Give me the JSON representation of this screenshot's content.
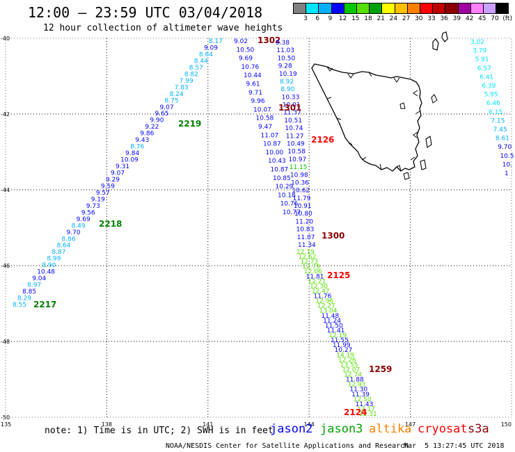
{
  "header": {
    "title": "12:00 – 23:59 UTC 03/04/2018",
    "subtitle": "12 hour collection of altimeter wave heights"
  },
  "colorbar": {
    "colors": [
      "#808080",
      "#00e5ff",
      "#00b0ff",
      "#0000ff",
      "#00c800",
      "#55e000",
      "#00a000",
      "#ffff00",
      "#ffc000",
      "#ff8000",
      "#ff0000",
      "#c00000",
      "#8b0000",
      "#a000a0",
      "#ff80ff",
      "#c8a0ff",
      "#000000"
    ],
    "labels": [
      "3",
      "6",
      "9",
      "12",
      "15",
      "18",
      "21",
      "24",
      "27",
      "30",
      "33",
      "36",
      "39",
      "42",
      "45",
      "70",
      "(ft)"
    ]
  },
  "map": {
    "lat_labels": [
      "-40",
      "-42",
      "-44",
      "-46",
      "-48",
      "-50"
    ],
    "lon_labels": [
      "135",
      "138",
      "141",
      "144",
      "147",
      "150"
    ],
    "land_icon": "tasmania-coastline-icon"
  },
  "tracks": [
    {
      "name": "track-west",
      "labels": [
        {
          "v": "8.55",
          "c": "#00b0ff"
        },
        {
          "v": "8.29",
          "c": "#00b0ff"
        },
        {
          "v": "8.85",
          "c": "#0000ff"
        },
        {
          "v": "8.97",
          "c": "#00b0ff"
        },
        {
          "v": "9.04",
          "c": "#0000ff"
        },
        {
          "v": "10.48",
          "c": "#0000ff"
        },
        {
          "v": "8.90",
          "c": "#00b0ff"
        },
        {
          "v": "8.99",
          "c": "#00b0ff"
        },
        {
          "v": "8.87",
          "c": "#00b0ff"
        },
        {
          "v": "8.64",
          "c": "#00b0ff"
        },
        {
          "v": "8.86",
          "c": "#00b0ff"
        },
        {
          "v": "9.70",
          "c": "#0000ff"
        },
        {
          "v": "8.49",
          "c": "#00b0ff"
        },
        {
          "v": "9.69",
          "c": "#0000ff"
        },
        {
          "v": "9.56",
          "c": "#0000ff"
        },
        {
          "v": "9.73",
          "c": "#0000ff"
        },
        {
          "v": "9.19",
          "c": "#0000ff"
        },
        {
          "v": "9.57",
          "c": "#0000ff"
        },
        {
          "v": "9.59",
          "c": "#0000ff"
        },
        {
          "v": "9.29",
          "c": "#0000ff"
        },
        {
          "v": "9.07",
          "c": "#0000ff"
        },
        {
          "v": "9.31",
          "c": "#0000ff"
        },
        {
          "v": "10.09",
          "c": "#0000ff"
        },
        {
          "v": "9.84",
          "c": "#0000ff"
        },
        {
          "v": "8.76",
          "c": "#00b0ff"
        },
        {
          "v": "9.43",
          "c": "#0000ff"
        },
        {
          "v": "9.86",
          "c": "#0000ff"
        },
        {
          "v": "9.22",
          "c": "#0000ff"
        },
        {
          "v": "9.90",
          "c": "#0000ff"
        },
        {
          "v": "9.65",
          "c": "#0000ff"
        },
        {
          "v": "9.07",
          "c": "#0000ff"
        },
        {
          "v": "8.75",
          "c": "#00b0ff"
        },
        {
          "v": "8.24",
          "c": "#00b0ff"
        },
        {
          "v": "7.83",
          "c": "#00b0ff"
        },
        {
          "v": "7.99",
          "c": "#00b0ff"
        },
        {
          "v": "8.82",
          "c": "#00b0ff"
        },
        {
          "v": "8.57",
          "c": "#00b0ff"
        },
        {
          "v": "8.44",
          "c": "#00b0ff"
        },
        {
          "v": "8.64",
          "c": "#00b0ff"
        },
        {
          "v": "9.09",
          "c": "#0000ff"
        },
        {
          "v": "8.17",
          "c": "#00b0ff"
        }
      ],
      "times": [
        {
          "v": "2217",
          "c": "#008000"
        },
        {
          "v": "2218",
          "c": "#008000"
        },
        {
          "v": "2219",
          "c": "#008000"
        }
      ]
    },
    {
      "name": "track-central",
      "labels": [
        {
          "v": "9.02",
          "c": "#0000ff"
        },
        {
          "v": "10.50",
          "c": "#0000ff"
        },
        {
          "v": "9.69",
          "c": "#0000ff"
        },
        {
          "v": "10.76",
          "c": "#0000ff"
        },
        {
          "v": "10.44",
          "c": "#0000ff"
        },
        {
          "v": "9.61",
          "c": "#0000ff"
        },
        {
          "v": "9.71",
          "c": "#0000ff"
        },
        {
          "v": "9.96",
          "c": "#0000ff"
        },
        {
          "v": "10.07",
          "c": "#0000ff"
        },
        {
          "v": "10.58",
          "c": "#0000ff"
        },
        {
          "v": "9.47",
          "c": "#0000ff"
        },
        {
          "v": "11.07",
          "c": "#0000ff"
        },
        {
          "v": "10.87",
          "c": "#0000ff"
        },
        {
          "v": "10.00",
          "c": "#0000ff"
        },
        {
          "v": "10.43",
          "c": "#0000ff"
        },
        {
          "v": "10.87",
          "c": "#0000ff"
        },
        {
          "v": "10.85",
          "c": "#0000ff"
        },
        {
          "v": "10.29",
          "c": "#0000ff"
        },
        {
          "v": "10.18",
          "c": "#0000ff"
        },
        {
          "v": "10.76",
          "c": "#0000ff"
        },
        {
          "v": "10.77",
          "c": "#0000ff"
        }
      ],
      "times": [
        {
          "v": "1302",
          "c": "#8b0000"
        }
      ]
    },
    {
      "name": "track-east",
      "labels": [
        {
          "v": "9.38",
          "c": "#0000ff"
        },
        {
          "v": "11.03",
          "c": "#0000ff"
        },
        {
          "v": "10.50",
          "c": "#0000ff"
        },
        {
          "v": "9.28",
          "c": "#0000ff"
        },
        {
          "v": "10.19",
          "c": "#0000ff"
        },
        {
          "v": "8.92",
          "c": "#00b0ff"
        },
        {
          "v": "8.90",
          "c": "#00b0ff"
        },
        {
          "v": "10.33",
          "c": "#0000ff"
        },
        {
          "v": "10.01",
          "c": "#0000ff"
        },
        {
          "v": "11.37",
          "c": "#0000ff"
        },
        {
          "v": "10.51",
          "c": "#0000ff"
        },
        {
          "v": "10.74",
          "c": "#0000ff"
        },
        {
          "v": "11.27",
          "c": "#0000ff"
        },
        {
          "v": "10.49",
          "c": "#0000ff"
        },
        {
          "v": "10.58",
          "c": "#0000ff"
        },
        {
          "v": "10.97",
          "c": "#0000ff"
        },
        {
          "v": "11.15",
          "c": "#00c800"
        },
        {
          "v": "10.98",
          "c": "#0000ff"
        },
        {
          "v": "10.36",
          "c": "#0000ff"
        },
        {
          "v": "10.62",
          "c": "#0000ff"
        },
        {
          "v": "11.79",
          "c": "#0000ff"
        },
        {
          "v": "10.91",
          "c": "#0000ff"
        },
        {
          "v": "10.80",
          "c": "#0000ff"
        },
        {
          "v": "11.20",
          "c": "#0000ff"
        },
        {
          "v": "10.83",
          "c": "#0000ff"
        },
        {
          "v": "11.07",
          "c": "#0000ff"
        },
        {
          "v": "11.34",
          "c": "#0000ff"
        }
      ],
      "times": [
        {
          "v": "1301",
          "c": "#8b0000"
        },
        {
          "v": "2126",
          "c": "#ff0000"
        },
        {
          "v": "1300",
          "c": "#8b0000"
        }
      ]
    },
    {
      "name": "track-south",
      "labels": [
        {
          "v": "12.19",
          "c": "#55e000"
        },
        {
          "v": "12.62",
          "c": "#55e000"
        },
        {
          "v": "12.73",
          "c": "#55e000"
        },
        {
          "v": "12.79",
          "c": "#55e000"
        },
        {
          "v": "12.06",
          "c": "#55e000"
        },
        {
          "v": "11.81",
          "c": "#0000ff"
        },
        {
          "v": "12.21",
          "c": "#55e000"
        },
        {
          "v": "12.30",
          "c": "#55e000"
        },
        {
          "v": "12.47",
          "c": "#55e000"
        },
        {
          "v": "11.76",
          "c": "#0000ff"
        },
        {
          "v": "12.96",
          "c": "#55e000"
        },
        {
          "v": "12.27",
          "c": "#55e000"
        },
        {
          "v": "13.04",
          "c": "#55e000"
        },
        {
          "v": "11.48",
          "c": "#0000ff"
        },
        {
          "v": "11.24",
          "c": "#0000ff"
        },
        {
          "v": "11.50",
          "c": "#0000ff"
        },
        {
          "v": "11.41",
          "c": "#0000ff"
        },
        {
          "v": "12.19",
          "c": "#55e000"
        },
        {
          "v": "11.55",
          "c": "#0000ff"
        },
        {
          "v": "11.99",
          "c": "#0000ff"
        },
        {
          "v": "10.27",
          "c": "#0000ff"
        },
        {
          "v": "14.19",
          "c": "#55e000"
        },
        {
          "v": "12.26",
          "c": "#55e000"
        },
        {
          "v": "13.55",
          "c": "#55e000"
        },
        {
          "v": "12.07",
          "c": "#55e000"
        },
        {
          "v": "12.74",
          "c": "#55e000"
        },
        {
          "v": "11.88",
          "c": "#0000ff"
        },
        {
          "v": "12.93",
          "c": "#55e000"
        },
        {
          "v": "11.30",
          "c": "#0000ff"
        },
        {
          "v": "11.39",
          "c": "#0000ff"
        },
        {
          "v": "12.50",
          "c": "#55e000"
        },
        {
          "v": "11.43",
          "c": "#0000ff"
        },
        {
          "v": "12.17",
          "c": "#55e000"
        },
        {
          "v": "12.31",
          "c": "#55e000"
        }
      ],
      "times": [
        {
          "v": "2125",
          "c": "#ff0000"
        },
        {
          "v": "1259",
          "c": "#8b0000"
        },
        {
          "v": "2124",
          "c": "#ff0000"
        }
      ]
    },
    {
      "name": "track-far-east",
      "labels": [
        {
          "v": "3.02",
          "c": "#00e5ff"
        },
        {
          "v": "3.79",
          "c": "#00e5ff"
        },
        {
          "v": "5.91",
          "c": "#00e5ff"
        },
        {
          "v": "6.57",
          "c": "#00e5ff"
        },
        {
          "v": "6.41",
          "c": "#00e5ff"
        },
        {
          "v": "6.39",
          "c": "#00e5ff"
        },
        {
          "v": "5.95",
          "c": "#00e5ff"
        },
        {
          "v": "6.46",
          "c": "#00e5ff"
        },
        {
          "v": "6.15",
          "c": "#00e5ff"
        },
        {
          "v": "7.15",
          "c": "#00b0ff"
        },
        {
          "v": "7.45",
          "c": "#00b0ff"
        },
        {
          "v": "8.61",
          "c": "#00b0ff"
        },
        {
          "v": "9.70",
          "c": "#0000ff"
        },
        {
          "v": "10.5",
          "c": "#0000ff"
        },
        {
          "v": "10.",
          "c": "#0000ff"
        },
        {
          "v": "1",
          "c": "#0000ff"
        }
      ],
      "times": []
    }
  ],
  "footer": {
    "note": "note: 1) Time is in UTC; 2) SWH is in feet",
    "legend": [
      {
        "name": "jason2",
        "color": "#0000ff"
      },
      {
        "name": "jason3",
        "color": "#00a000"
      },
      {
        "name": "altika",
        "color": "#ff8000"
      },
      {
        "name": "cryosat",
        "color": "#ff0000"
      },
      {
        "name": "s3a",
        "color": "#8b0000"
      }
    ],
    "credit": "NOAA/NESDIS Center for Satellite Applications and Research",
    "stamp": "Mar  5 13:27:45 UTC 2018"
  }
}
